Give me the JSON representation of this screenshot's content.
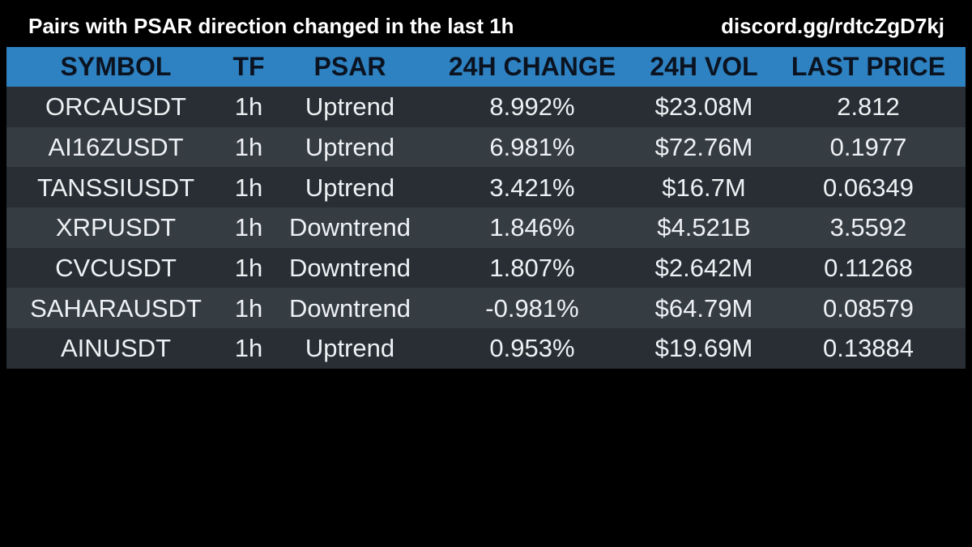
{
  "header": {
    "title": "Pairs with PSAR direction changed in the last 1h",
    "invite": "discord.gg/rdtcZgD7kj"
  },
  "table": {
    "columns": [
      "SYMBOL",
      "TF",
      "PSAR",
      "24H CHANGE",
      "24H VOL",
      "LAST PRICE"
    ],
    "rows": [
      [
        "ORCAUSDT",
        "1h",
        "Uptrend",
        "8.992%",
        "$23.08M",
        "2.812"
      ],
      [
        "AI16ZUSDT",
        "1h",
        "Uptrend",
        "6.981%",
        "$72.76M",
        "0.1977"
      ],
      [
        "TANSSIUSDT",
        "1h",
        "Uptrend",
        "3.421%",
        "$16.7M",
        "0.06349"
      ],
      [
        "XRPUSDT",
        "1h",
        "Downtrend",
        "1.846%",
        "$4.521B",
        "3.5592"
      ],
      [
        "CVCUSDT",
        "1h",
        "Downtrend",
        "1.807%",
        "$2.642M",
        "0.11268"
      ],
      [
        "SAHARAUSDT",
        "1h",
        "Downtrend",
        "-0.981%",
        "$64.79M",
        "0.08579"
      ],
      [
        "AINUSDT",
        "1h",
        "Uptrend",
        "0.953%",
        "$19.69M",
        "0.13884"
      ]
    ]
  },
  "colors": {
    "background": "#000000",
    "header_row": "#2e82c2",
    "header_text": "#0b1320",
    "row_dark": "#282e33",
    "row_light": "#353c42",
    "cell_text": "#eef1f4"
  }
}
